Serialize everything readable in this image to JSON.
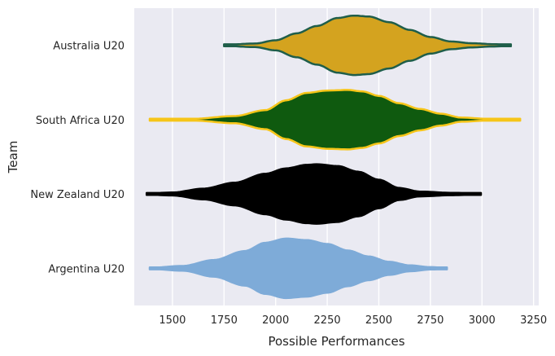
{
  "chart_data": {
    "type": "violin",
    "orientation": "horizontal",
    "title": "",
    "xlabel": "Possible Performances",
    "ylabel": "Team",
    "xlim": [
      1315,
      3275
    ],
    "x_ticks": [
      1500,
      1750,
      2000,
      2250,
      2500,
      2750,
      3000,
      3250
    ],
    "grid": true,
    "legend": "none",
    "background": "#eaeaf2",
    "series": [
      {
        "name": "Australia U20",
        "fill": "#d4a31f",
        "edge": "#1f5e4a",
        "range": [
          1750,
          3140
        ],
        "profile": [
          [
            1750,
            0.02
          ],
          [
            1900,
            0.06
          ],
          [
            2000,
            0.17
          ],
          [
            2100,
            0.4
          ],
          [
            2200,
            0.65
          ],
          [
            2300,
            0.92
          ],
          [
            2380,
            1.0
          ],
          [
            2450,
            0.97
          ],
          [
            2550,
            0.78
          ],
          [
            2650,
            0.52
          ],
          [
            2750,
            0.28
          ],
          [
            2850,
            0.13
          ],
          [
            2950,
            0.07
          ],
          [
            3050,
            0.04
          ],
          [
            3140,
            0.02
          ]
        ]
      },
      {
        "name": "South Africa U20",
        "fill": "#0f5a0f",
        "edge": "#f6c519",
        "range": [
          1390,
          3185
        ],
        "profile": [
          [
            1390,
            0.01
          ],
          [
            1600,
            0.03
          ],
          [
            1800,
            0.12
          ],
          [
            1950,
            0.32
          ],
          [
            2050,
            0.65
          ],
          [
            2150,
            0.9
          ],
          [
            2250,
            0.98
          ],
          [
            2350,
            1.0
          ],
          [
            2420,
            0.95
          ],
          [
            2500,
            0.8
          ],
          [
            2600,
            0.55
          ],
          [
            2700,
            0.36
          ],
          [
            2800,
            0.2
          ],
          [
            2900,
            0.07
          ],
          [
            3050,
            0.02
          ],
          [
            3185,
            0.01
          ]
        ]
      },
      {
        "name": "New Zealand U20",
        "fill": "#000000",
        "edge": "#000000",
        "range": [
          1375,
          2995
        ],
        "profile": [
          [
            1375,
            0.02
          ],
          [
            1500,
            0.05
          ],
          [
            1650,
            0.18
          ],
          [
            1800,
            0.38
          ],
          [
            1950,
            0.68
          ],
          [
            2050,
            0.86
          ],
          [
            2150,
            0.98
          ],
          [
            2200,
            1.0
          ],
          [
            2300,
            0.94
          ],
          [
            2400,
            0.75
          ],
          [
            2500,
            0.48
          ],
          [
            2600,
            0.2
          ],
          [
            2700,
            0.08
          ],
          [
            2850,
            0.04
          ],
          [
            2995,
            0.02
          ]
        ]
      },
      {
        "name": "Argentina U20",
        "fill": "#7eabd8",
        "edge": "#7eabd8",
        "range": [
          1390,
          2830
        ],
        "profile": [
          [
            1390,
            0.02
          ],
          [
            1550,
            0.08
          ],
          [
            1700,
            0.28
          ],
          [
            1850,
            0.58
          ],
          [
            1950,
            0.86
          ],
          [
            2050,
            1.0
          ],
          [
            2150,
            0.95
          ],
          [
            2250,
            0.82
          ],
          [
            2350,
            0.6
          ],
          [
            2450,
            0.4
          ],
          [
            2550,
            0.22
          ],
          [
            2650,
            0.1
          ],
          [
            2750,
            0.04
          ],
          [
            2830,
            0.02
          ]
        ]
      }
    ]
  }
}
